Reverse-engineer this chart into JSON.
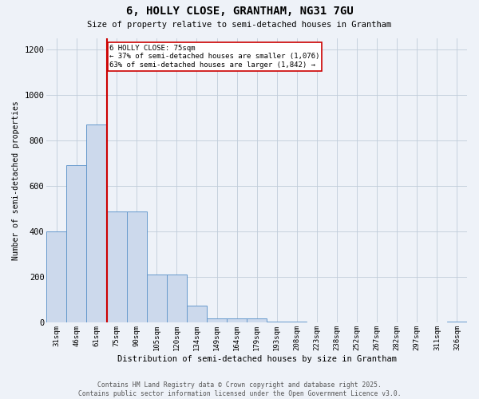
{
  "title1": "6, HOLLY CLOSE, GRANTHAM, NG31 7GU",
  "title2": "Size of property relative to semi-detached houses in Grantham",
  "xlabel": "Distribution of semi-detached houses by size in Grantham",
  "ylabel": "Number of semi-detached properties",
  "categories": [
    "31sqm",
    "46sqm",
    "61sqm",
    "75sqm",
    "90sqm",
    "105sqm",
    "120sqm",
    "134sqm",
    "149sqm",
    "164sqm",
    "179sqm",
    "193sqm",
    "208sqm",
    "223sqm",
    "238sqm",
    "252sqm",
    "267sqm",
    "282sqm",
    "297sqm",
    "311sqm",
    "326sqm"
  ],
  "values": [
    400,
    690,
    870,
    490,
    490,
    210,
    210,
    75,
    20,
    20,
    20,
    5,
    5,
    0,
    0,
    0,
    0,
    0,
    0,
    0,
    5
  ],
  "bar_color": "#ccd9ec",
  "bar_edge_color": "#6699cc",
  "vline_color": "#cc0000",
  "annotation_text": "6 HOLLY CLOSE: 75sqm\n← 37% of semi-detached houses are smaller (1,076)\n63% of semi-detached houses are larger (1,842) →",
  "annotation_box_color": "#ffffff",
  "annotation_box_edge_color": "#cc0000",
  "ylim": [
    0,
    1250
  ],
  "yticks": [
    0,
    200,
    400,
    600,
    800,
    1000,
    1200
  ],
  "footer1": "Contains HM Land Registry data © Crown copyright and database right 2025.",
  "footer2": "Contains public sector information licensed under the Open Government Licence v3.0.",
  "bg_color": "#eef2f8"
}
